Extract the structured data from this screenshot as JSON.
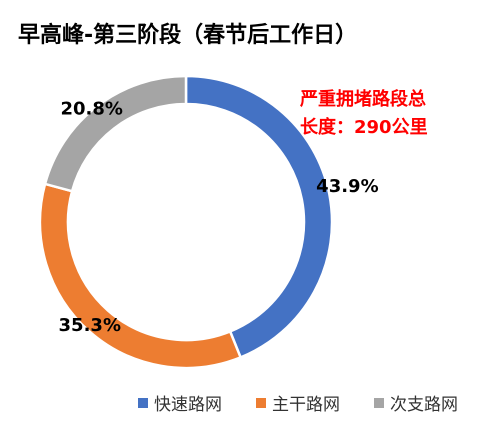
{
  "title": "早高峰-第三阶段（春节后工作日）",
  "annotation": {
    "line1": "严重拥堵路段总",
    "line2": "长度：290公里"
  },
  "chart_data": {
    "type": "pie",
    "donut": true,
    "start_angle_deg": 0,
    "direction": "clockwise",
    "legend_position": "bottom",
    "series": [
      {
        "name": "快速路网",
        "value": 43.9,
        "label": "43.9%",
        "color": "#4472c4"
      },
      {
        "name": "主干路网",
        "value": 35.3,
        "label": "35.3%",
        "color": "#ed7d31"
      },
      {
        "name": "次支路网",
        "value": 20.8,
        "label": "20.8%",
        "color": "#a5a5a5"
      }
    ]
  }
}
